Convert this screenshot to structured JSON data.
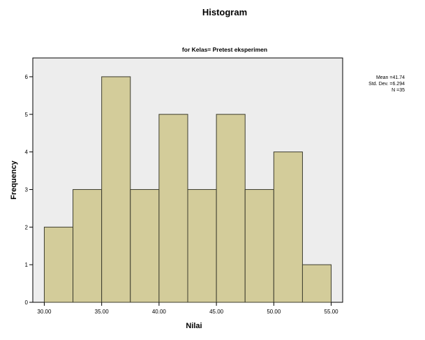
{
  "chart_data": {
    "type": "bar",
    "title": "Histogram",
    "subtitle": "for Kelas= Pretest eksperimen",
    "xlabel": "Nilai",
    "ylabel": "Frequency",
    "bin_edges": [
      30.0,
      32.5,
      35.0,
      37.5,
      40.0,
      42.5,
      45.0,
      47.5,
      50.0,
      52.5,
      55.0
    ],
    "values": [
      2,
      3,
      6,
      3,
      5,
      3,
      5,
      3,
      4,
      1
    ],
    "xlim": [
      29.0,
      56.0
    ],
    "ylim": [
      0,
      6.5
    ],
    "x_ticks": [
      30,
      35,
      40,
      45,
      50,
      55
    ],
    "x_tick_labels": [
      "30.00",
      "35.00",
      "40.00",
      "45.00",
      "50.00",
      "55.00"
    ],
    "y_ticks": [
      0,
      1,
      2,
      3,
      4,
      5,
      6
    ],
    "y_tick_labels": [
      "0",
      "1",
      "2",
      "3",
      "4",
      "5",
      "6"
    ],
    "grid": false,
    "legend_placement": "right",
    "stats": {
      "mean": "Mean =41.74",
      "std_dev": "Std. Dev. =6.294",
      "n": "N =35"
    },
    "colors": {
      "bar_fill": "#d3cc9a",
      "bar_stroke": "#3d3d2e",
      "plot_background": "#ededed",
      "frame": "#000000"
    }
  }
}
